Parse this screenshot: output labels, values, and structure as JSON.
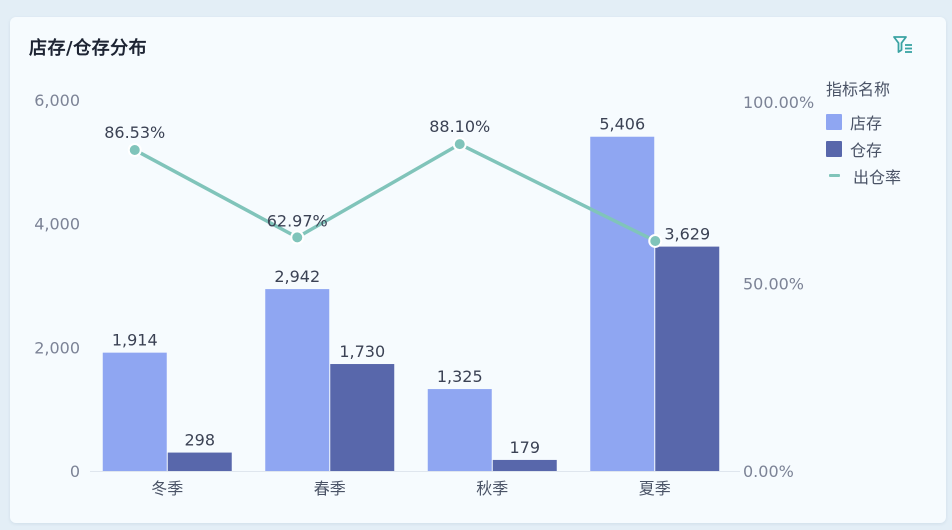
{
  "header": {
    "title": "店存/仓存分布",
    "filter_icon": "filter-icon"
  },
  "colors": {
    "store": "#8fa6f2",
    "warehouse": "#5867ab",
    "rate": "#80c4ba",
    "axis_text": "#7c8396",
    "label_text": "#3b4254"
  },
  "chart_data": {
    "type": "bar+line",
    "categories": [
      "冬季",
      "春季",
      "秋季",
      "夏季"
    ],
    "series": [
      {
        "name": "店存",
        "type": "bar",
        "axis": "left",
        "values": [
          1914,
          2942,
          1325,
          5406
        ],
        "labels": [
          "1,914",
          "2,942",
          "1,325",
          "5,406"
        ]
      },
      {
        "name": "仓存",
        "type": "bar",
        "axis": "left",
        "values": [
          298,
          1730,
          179,
          3629
        ],
        "labels": [
          "298",
          "1,730",
          "179",
          "3,629"
        ]
      },
      {
        "name": "出仓率",
        "type": "line",
        "axis": "right",
        "values": [
          86.53,
          62.97,
          88.1,
          62.0
        ],
        "labels": [
          "86.53%",
          "62.97%",
          "88.10%",
          ""
        ]
      }
    ],
    "y_left": {
      "ticks": [
        0,
        2000,
        4000,
        6000
      ],
      "tick_labels": [
        "0",
        "2,000",
        "4,000",
        "6,000"
      ]
    },
    "y_right": {
      "ticks": [
        0,
        50,
        100
      ],
      "tick_labels": [
        "0.00%",
        "50.00%",
        "100.00%"
      ]
    },
    "legend": {
      "title": "指标名称",
      "placement": "right"
    }
  }
}
